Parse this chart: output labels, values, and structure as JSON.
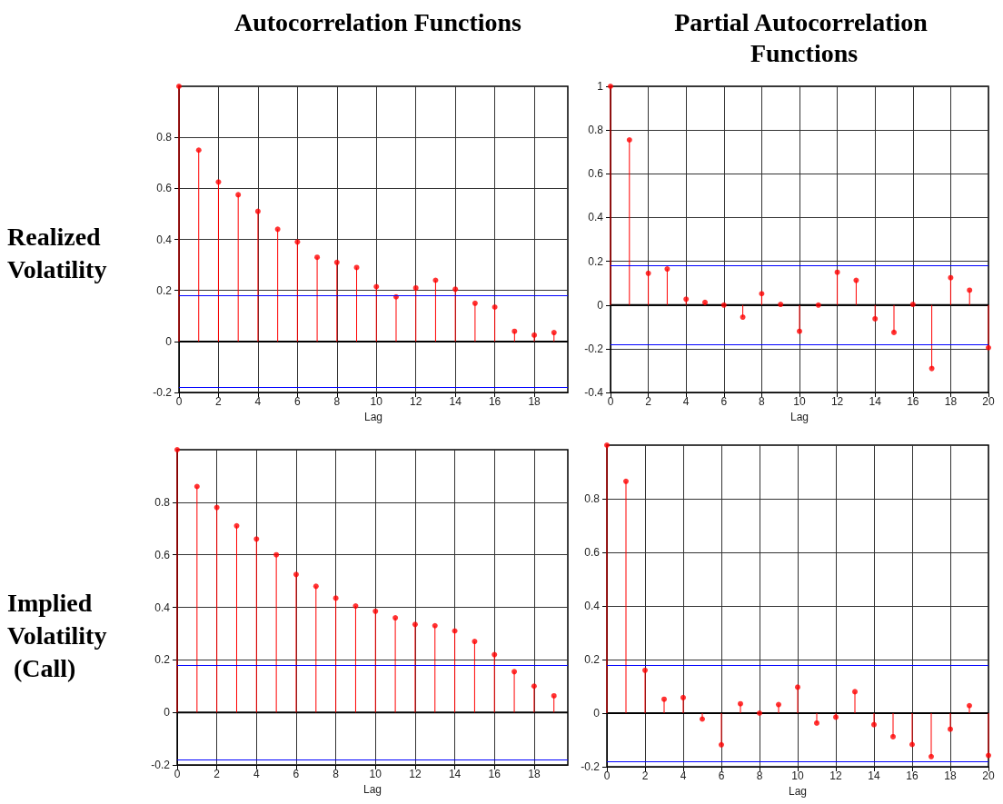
{
  "chart_data": [
    {
      "type": "lollipop",
      "title": "Autocorrelation Functions",
      "ylabel": "Realized Volatility",
      "xlabel": "Lag",
      "x": [
        0,
        1,
        2,
        3,
        4,
        5,
        6,
        7,
        8,
        9,
        10,
        11,
        12,
        13,
        14,
        15,
        16,
        17,
        18,
        19
      ],
      "values": [
        1,
        0.75,
        0.625,
        0.575,
        0.51,
        0.44,
        0.39,
        0.33,
        0.31,
        0.29,
        0.215,
        0.175,
        0.21,
        0.24,
        0.205,
        0.15,
        0.135,
        0.04,
        0.025,
        0.035
      ],
      "color": "#ff0000",
      "marker": "circle",
      "grid": true,
      "xlim": [
        0,
        19.7
      ],
      "xticks": [
        0,
        2,
        4,
        6,
        8,
        10,
        12,
        14,
        16,
        18
      ],
      "ylim": [
        -0.2,
        1
      ],
      "yticks": [
        -0.2,
        0,
        0.2,
        0.4,
        0.6,
        0.8
      ],
      "ref_lines": [
        {
          "axis": "y",
          "value": 0.18,
          "color": "#0000ff"
        },
        {
          "axis": "y",
          "value": -0.18,
          "color": "#0000ff"
        }
      ]
    },
    {
      "type": "lollipop",
      "title": "Partial Autocorrelation Functions",
      "xlabel": "Lag",
      "x": [
        0,
        1,
        2,
        3,
        4,
        5,
        6,
        7,
        8,
        9,
        10,
        11,
        12,
        13,
        14,
        15,
        16,
        17,
        18,
        19,
        20
      ],
      "values": [
        1,
        0.755,
        0.145,
        0.165,
        0.027,
        0.012,
        0,
        -0.055,
        0.052,
        0.003,
        -0.12,
        0,
        0.15,
        0.113,
        -0.063,
        -0.125,
        0.003,
        -0.29,
        0.125,
        0.068,
        -0.195
      ],
      "color": "#ff0000",
      "marker": "circle",
      "grid": true,
      "xlim": [
        0,
        20
      ],
      "xticks": [
        0,
        2,
        4,
        6,
        8,
        10,
        12,
        14,
        16,
        18,
        20
      ],
      "ylim": [
        -0.4,
        1
      ],
      "yticks": [
        -0.4,
        -0.2,
        0,
        0.2,
        0.4,
        0.6,
        0.8,
        1
      ],
      "ref_lines": [
        {
          "axis": "y",
          "value": 0.18,
          "color": "#0000ff"
        },
        {
          "axis": "y",
          "value": -0.18,
          "color": "#0000ff"
        }
      ]
    },
    {
      "type": "lollipop",
      "ylabel": "Implied Volatility (Call)",
      "xlabel": "Lag",
      "x": [
        0,
        1,
        2,
        3,
        4,
        5,
        6,
        7,
        8,
        9,
        10,
        11,
        12,
        13,
        14,
        15,
        16,
        17,
        18,
        19
      ],
      "values": [
        1,
        0.86,
        0.78,
        0.71,
        0.66,
        0.6,
        0.525,
        0.48,
        0.435,
        0.405,
        0.385,
        0.36,
        0.335,
        0.33,
        0.31,
        0.27,
        0.22,
        0.155,
        0.1,
        0.063
      ],
      "color": "#ff0000",
      "marker": "circle",
      "grid": true,
      "xlim": [
        0,
        19.7
      ],
      "xticks": [
        0,
        2,
        4,
        6,
        8,
        10,
        12,
        14,
        16,
        18
      ],
      "ylim": [
        -0.2,
        1
      ],
      "yticks": [
        -0.2,
        0,
        0.2,
        0.4,
        0.6,
        0.8
      ],
      "ref_lines": [
        {
          "axis": "y",
          "value": 0.18,
          "color": "#0000ff"
        },
        {
          "axis": "y",
          "value": -0.18,
          "color": "#0000ff"
        }
      ]
    },
    {
      "type": "lollipop",
      "xlabel": "Lag",
      "x": [
        0,
        1,
        2,
        3,
        4,
        5,
        6,
        7,
        8,
        9,
        10,
        11,
        12,
        13,
        14,
        15,
        16,
        17,
        18,
        19,
        20
      ],
      "values": [
        1,
        0.865,
        0.16,
        0.052,
        0.058,
        -0.022,
        -0.118,
        0.035,
        0,
        0.032,
        0.097,
        -0.037,
        -0.015,
        0.08,
        -0.043,
        -0.088,
        -0.117,
        -0.162,
        -0.06,
        0.028,
        -0.158
      ],
      "color": "#ff0000",
      "marker": "circle",
      "grid": true,
      "xlim": [
        0,
        20
      ],
      "xticks": [
        0,
        2,
        4,
        6,
        8,
        10,
        12,
        14,
        16,
        18,
        20
      ],
      "ylim": [
        -0.2,
        1
      ],
      "yticks": [
        -0.2,
        0,
        0.2,
        0.4,
        0.6,
        0.8
      ],
      "ref_lines": [
        {
          "axis": "y",
          "value": 0.18,
          "color": "#0000ff"
        },
        {
          "axis": "y",
          "value": -0.18,
          "color": "#0000ff"
        }
      ]
    }
  ]
}
